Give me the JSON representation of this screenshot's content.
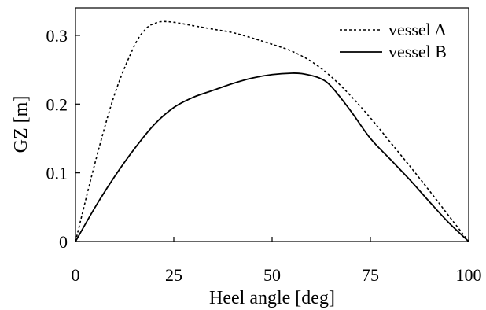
{
  "chart_data": {
    "type": "line",
    "xlabel": "Heel angle [deg]",
    "ylabel": "GZ [m]",
    "xlim": [
      0,
      100
    ],
    "ylim": [
      0,
      0.34
    ],
    "x_ticks": [
      0,
      25,
      50,
      75,
      100
    ],
    "x_tick_labels": [
      "0",
      "25",
      "50",
      "75",
      "100"
    ],
    "y_ticks": [
      0,
      0.1,
      0.2,
      0.3
    ],
    "y_tick_labels": [
      "0",
      "0.1",
      "0.2",
      "0.3"
    ],
    "grid": false,
    "legend_position": "top-right",
    "series": [
      {
        "name": "vessel A",
        "line_style": "dotted",
        "color": "#000000",
        "x": [
          0,
          5,
          10,
          15,
          18,
          20,
          22,
          25,
          30,
          35,
          40,
          45,
          50,
          55,
          60,
          65,
          70,
          75,
          80,
          85,
          90,
          95,
          100
        ],
        "y": [
          0,
          0.115,
          0.215,
          0.285,
          0.31,
          0.317,
          0.32,
          0.319,
          0.314,
          0.309,
          0.304,
          0.296,
          0.287,
          0.277,
          0.262,
          0.24,
          0.212,
          0.18,
          0.145,
          0.11,
          0.074,
          0.037,
          0
        ]
      },
      {
        "name": "vessel B",
        "line_style": "solid",
        "color": "#000000",
        "x": [
          0,
          5,
          10,
          15,
          20,
          25,
          30,
          35,
          40,
          45,
          50,
          55,
          58,
          62,
          65,
          70,
          75,
          80,
          85,
          90,
          95,
          100
        ],
        "y": [
          0,
          0.05,
          0.095,
          0.135,
          0.17,
          0.195,
          0.21,
          0.22,
          0.23,
          0.238,
          0.243,
          0.245,
          0.244,
          0.238,
          0.226,
          0.19,
          0.15,
          0.12,
          0.09,
          0.058,
          0.027,
          0
        ]
      }
    ]
  }
}
